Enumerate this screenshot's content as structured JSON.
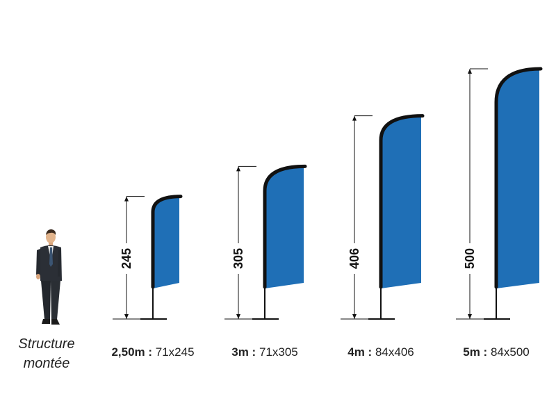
{
  "person": {
    "caption_line1": "Structure",
    "caption_line2": "montée"
  },
  "colors": {
    "flag_blue": "#1f6fb6",
    "pole": "#111111",
    "dimension_line": "#111111"
  },
  "flags": [
    {
      "height_cm": 245,
      "dimension_label": "245",
      "size_label": "2,50m :",
      "dims_label": "71x245"
    },
    {
      "height_cm": 305,
      "dimension_label": "305",
      "size_label": "3m :",
      "dims_label": "71x305"
    },
    {
      "height_cm": 406,
      "dimension_label": "406",
      "size_label": "4m :",
      "dims_label": "84x406"
    },
    {
      "height_cm": 500,
      "dimension_label": "500",
      "size_label": "5m :",
      "dims_label": "84x500"
    }
  ]
}
